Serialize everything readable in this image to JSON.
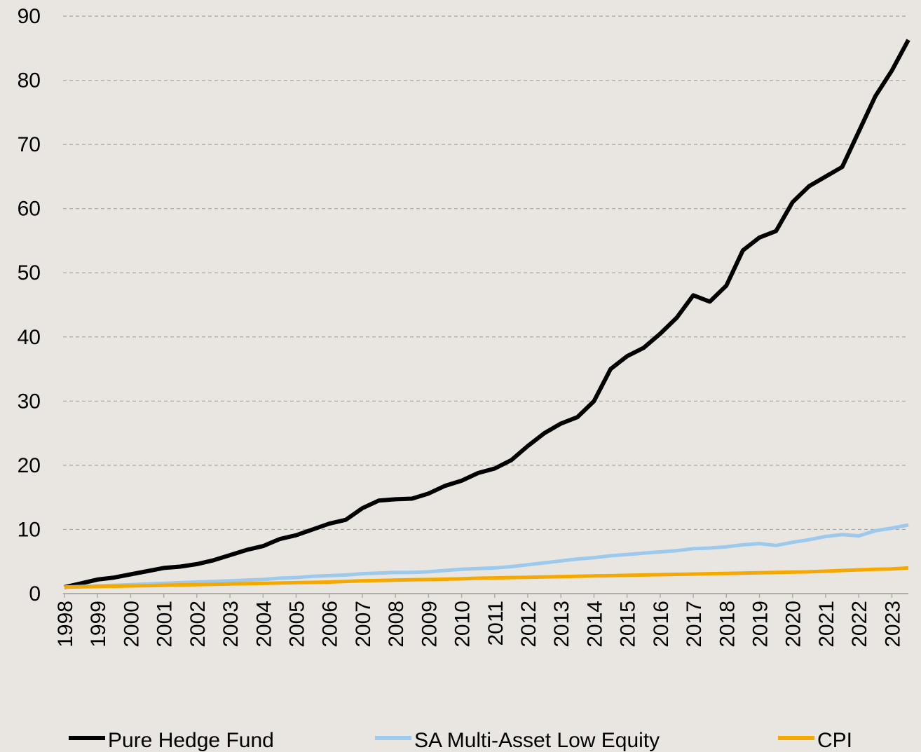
{
  "chart_data": {
    "type": "line",
    "x": [
      1998,
      1998.5,
      1999,
      1999.5,
      2000,
      2000.5,
      2001,
      2001.5,
      2002,
      2002.5,
      2003,
      2003.5,
      2004,
      2004.5,
      2005,
      2005.5,
      2006,
      2006.5,
      2007,
      2007.5,
      2008,
      2008.5,
      2009,
      2009.5,
      2010,
      2010.5,
      2011,
      2011.5,
      2012,
      2012.5,
      2013,
      2013.5,
      2014,
      2014.5,
      2015,
      2015.5,
      2016,
      2016.5,
      2017,
      2017.5,
      2018,
      2018.5,
      2019,
      2019.5,
      2020,
      2020.5,
      2021,
      2021.5,
      2022,
      2022.5,
      2023,
      2023.5
    ],
    "series": [
      {
        "name": "Pure Hedge Fund",
        "color": "#000000",
        "values": [
          1,
          1.6,
          2.2,
          2.5,
          3,
          3.5,
          4,
          4.2,
          4.6,
          5.2,
          6,
          6.8,
          7.4,
          8.5,
          9.1,
          10,
          10.9,
          11.5,
          13.3,
          14.5,
          14.7,
          14.8,
          15.6,
          16.8,
          17.6,
          18.8,
          19.5,
          20.8,
          23,
          25,
          26.5,
          27.5,
          30,
          35,
          37,
          38.3,
          40.5,
          43,
          46.5,
          45.5,
          48,
          53.5,
          55.5,
          56.5,
          61,
          63.5,
          65,
          66.5,
          72,
          77.5,
          81.5,
          86.3
        ]
      },
      {
        "name": "SA Multi-Asset Low Equity",
        "color": "#9dc9ec",
        "values": [
          1,
          1.1,
          1.2,
          1.3,
          1.4,
          1.5,
          1.6,
          1.7,
          1.8,
          1.9,
          2.0,
          2.1,
          2.2,
          2.4,
          2.5,
          2.7,
          2.8,
          2.9,
          3.1,
          3.2,
          3.3,
          3.3,
          3.4,
          3.6,
          3.8,
          3.9,
          4.0,
          4.2,
          4.5,
          4.8,
          5.1,
          5.4,
          5.6,
          5.9,
          6.1,
          6.3,
          6.5,
          6.7,
          7.0,
          7.1,
          7.3,
          7.6,
          7.8,
          7.5,
          8.0,
          8.4,
          8.9,
          9.2,
          9.0,
          9.8,
          10.2,
          10.7
        ]
      },
      {
        "name": "CPI",
        "color": "#f5a800",
        "values": [
          1,
          1.05,
          1.1,
          1.15,
          1.2,
          1.25,
          1.3,
          1.35,
          1.4,
          1.45,
          1.5,
          1.55,
          1.6,
          1.65,
          1.7,
          1.75,
          1.8,
          1.9,
          2.0,
          2.05,
          2.1,
          2.15,
          2.2,
          2.25,
          2.3,
          2.4,
          2.45,
          2.5,
          2.55,
          2.6,
          2.65,
          2.7,
          2.75,
          2.8,
          2.85,
          2.9,
          2.95,
          3.0,
          3.05,
          3.1,
          3.15,
          3.2,
          3.25,
          3.3,
          3.35,
          3.4,
          3.5,
          3.6,
          3.7,
          3.8,
          3.85,
          4.0
        ]
      }
    ],
    "xlim": [
      1998,
      2023.5
    ],
    "xticks": [
      1998,
      1999,
      2000,
      2001,
      2002,
      2003,
      2004,
      2005,
      2006,
      2007,
      2008,
      2009,
      2010,
      2011,
      2012,
      2013,
      2014,
      2015,
      2016,
      2017,
      2018,
      2019,
      2020,
      2021,
      2022,
      2023
    ],
    "ylim": [
      0,
      90
    ],
    "yticks": [
      0,
      10,
      20,
      30,
      40,
      50,
      60,
      70,
      80,
      90
    ],
    "grid": true,
    "legend": "bottom"
  }
}
